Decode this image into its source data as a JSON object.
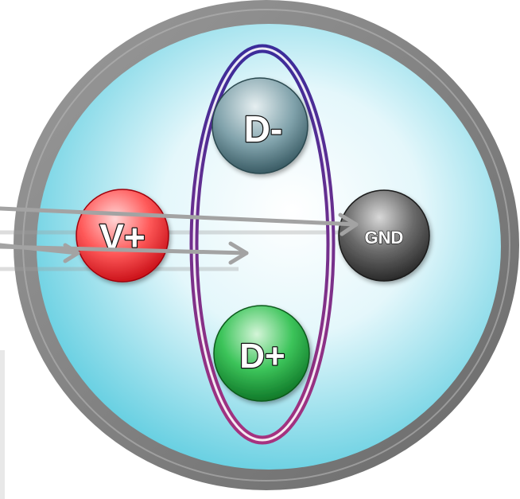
{
  "pins": {
    "d_minus": {
      "label": "D-",
      "color": "#3f6b78"
    },
    "v_plus": {
      "label": "V+",
      "color": "#e0181f"
    },
    "gnd": {
      "label": "GND",
      "color": "#3a3a3a"
    },
    "d_plus": {
      "label": "D+",
      "color": "#1a9a3a"
    }
  },
  "colors": {
    "outer_ring": "#7d7d7d",
    "inner_fill": "#a8e6f2",
    "data_pair_loop": "#6b3fa0",
    "arrow": "#a0a0a0"
  },
  "icons": {
    "arrows": "arrow-right-icon"
  }
}
